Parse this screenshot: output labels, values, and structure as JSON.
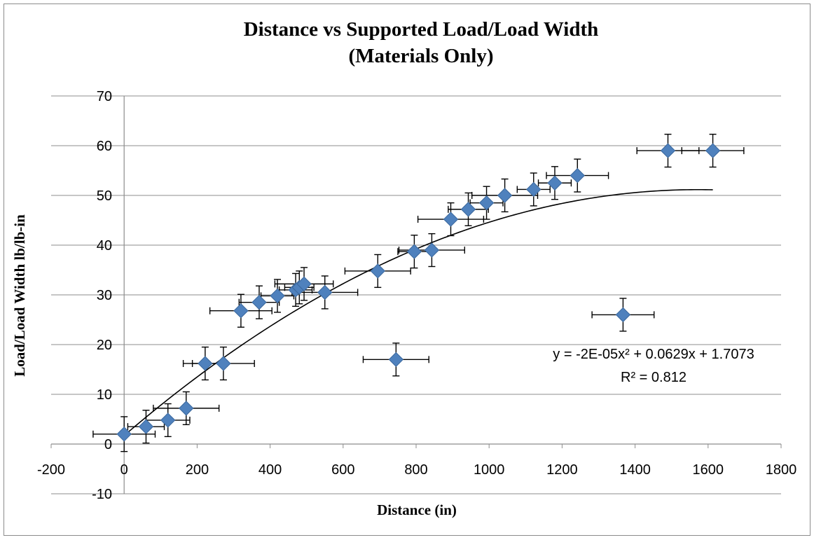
{
  "chart_data": {
    "type": "scatter",
    "title": [
      "Distance vs Supported Load/Load Width",
      "(Materials Only)"
    ],
    "xlabel": "Distance (in)",
    "ylabel": "Load/Load Width lb/lb-in",
    "xlim": [
      -200,
      1800
    ],
    "ylim": [
      -10,
      70
    ],
    "xticks": [
      -200,
      0,
      200,
      400,
      600,
      800,
      1000,
      1200,
      1400,
      1600,
      1800
    ],
    "yticks": [
      -10,
      0,
      10,
      20,
      30,
      40,
      50,
      60,
      70
    ],
    "grid": "horizontal",
    "legend": "none",
    "marker_color": "#4f81bd",
    "series": [
      {
        "points": [
          {
            "x": 0,
            "y": 2,
            "xerr": 85,
            "yerr": 3.5
          },
          {
            "x": 60,
            "y": 3.5,
            "xerr": 50,
            "yerr": 3.3
          },
          {
            "x": 120,
            "y": 4.8,
            "xerr": 60,
            "yerr": 3.3
          },
          {
            "x": 170,
            "y": 7.2,
            "xerr": 90,
            "yerr": 3.3
          },
          {
            "x": 222,
            "y": 16.2,
            "xerr": 60,
            "yerr": 3.3
          },
          {
            "x": 272,
            "y": 16.2,
            "xerr": 85,
            "yerr": 3.3
          },
          {
            "x": 320,
            "y": 26.8,
            "xerr": 85,
            "yerr": 3.3
          },
          {
            "x": 370,
            "y": 28.5,
            "xerr": 55,
            "yerr": 3.3
          },
          {
            "x": 420,
            "y": 29.8,
            "xerr": 45,
            "yerr": 3.3
          },
          {
            "x": 470,
            "y": 31.0,
            "xerr": 45,
            "yerr": 3.3
          },
          {
            "x": 480,
            "y": 31.5,
            "xerr": 40,
            "yerr": 3.3
          },
          {
            "x": 493,
            "y": 32.2,
            "xerr": 80,
            "yerr": 3.3
          },
          {
            "x": 550,
            "y": 30.5,
            "xerr": 90,
            "yerr": 3.3
          },
          {
            "x": 695,
            "y": 34.8,
            "xerr": 90,
            "yerr": 3.3
          },
          {
            "x": 745,
            "y": 17.0,
            "xerr": 90,
            "yerr": 3.3
          },
          {
            "x": 795,
            "y": 38.7,
            "xerr": 45,
            "yerr": 3.3
          },
          {
            "x": 843,
            "y": 39.0,
            "xerr": 90,
            "yerr": 3.3
          },
          {
            "x": 895,
            "y": 45.2,
            "xerr": 90,
            "yerr": 3.3
          },
          {
            "x": 943,
            "y": 47.2,
            "xerr": 55,
            "yerr": 3.3
          },
          {
            "x": 993,
            "y": 48.5,
            "xerr": 45,
            "yerr": 3.3
          },
          {
            "x": 1043,
            "y": 50.0,
            "xerr": 90,
            "yerr": 3.3
          },
          {
            "x": 1122,
            "y": 51.2,
            "xerr": 45,
            "yerr": 3.3
          },
          {
            "x": 1180,
            "y": 52.5,
            "xerr": 45,
            "yerr": 3.3
          },
          {
            "x": 1242,
            "y": 54.0,
            "xerr": 85,
            "yerr": 3.3
          },
          {
            "x": 1367,
            "y": 26.0,
            "xerr": 85,
            "yerr": 3.3
          },
          {
            "x": 1490,
            "y": 59.0,
            "xerr": 85,
            "yerr": 3.3
          },
          {
            "x": 1613,
            "y": 59.0,
            "xerr": 85,
            "yerr": 3.3
          }
        ]
      }
    ],
    "trendline": {
      "type": "polynomial",
      "coefficients": [
        -2e-05,
        0.0629,
        1.7073
      ],
      "x_range": [
        0,
        1613
      ],
      "equation": "y = -2E-05x² + 0.0629x + 1.7073",
      "r_squared": "R² = 0.812"
    }
  }
}
